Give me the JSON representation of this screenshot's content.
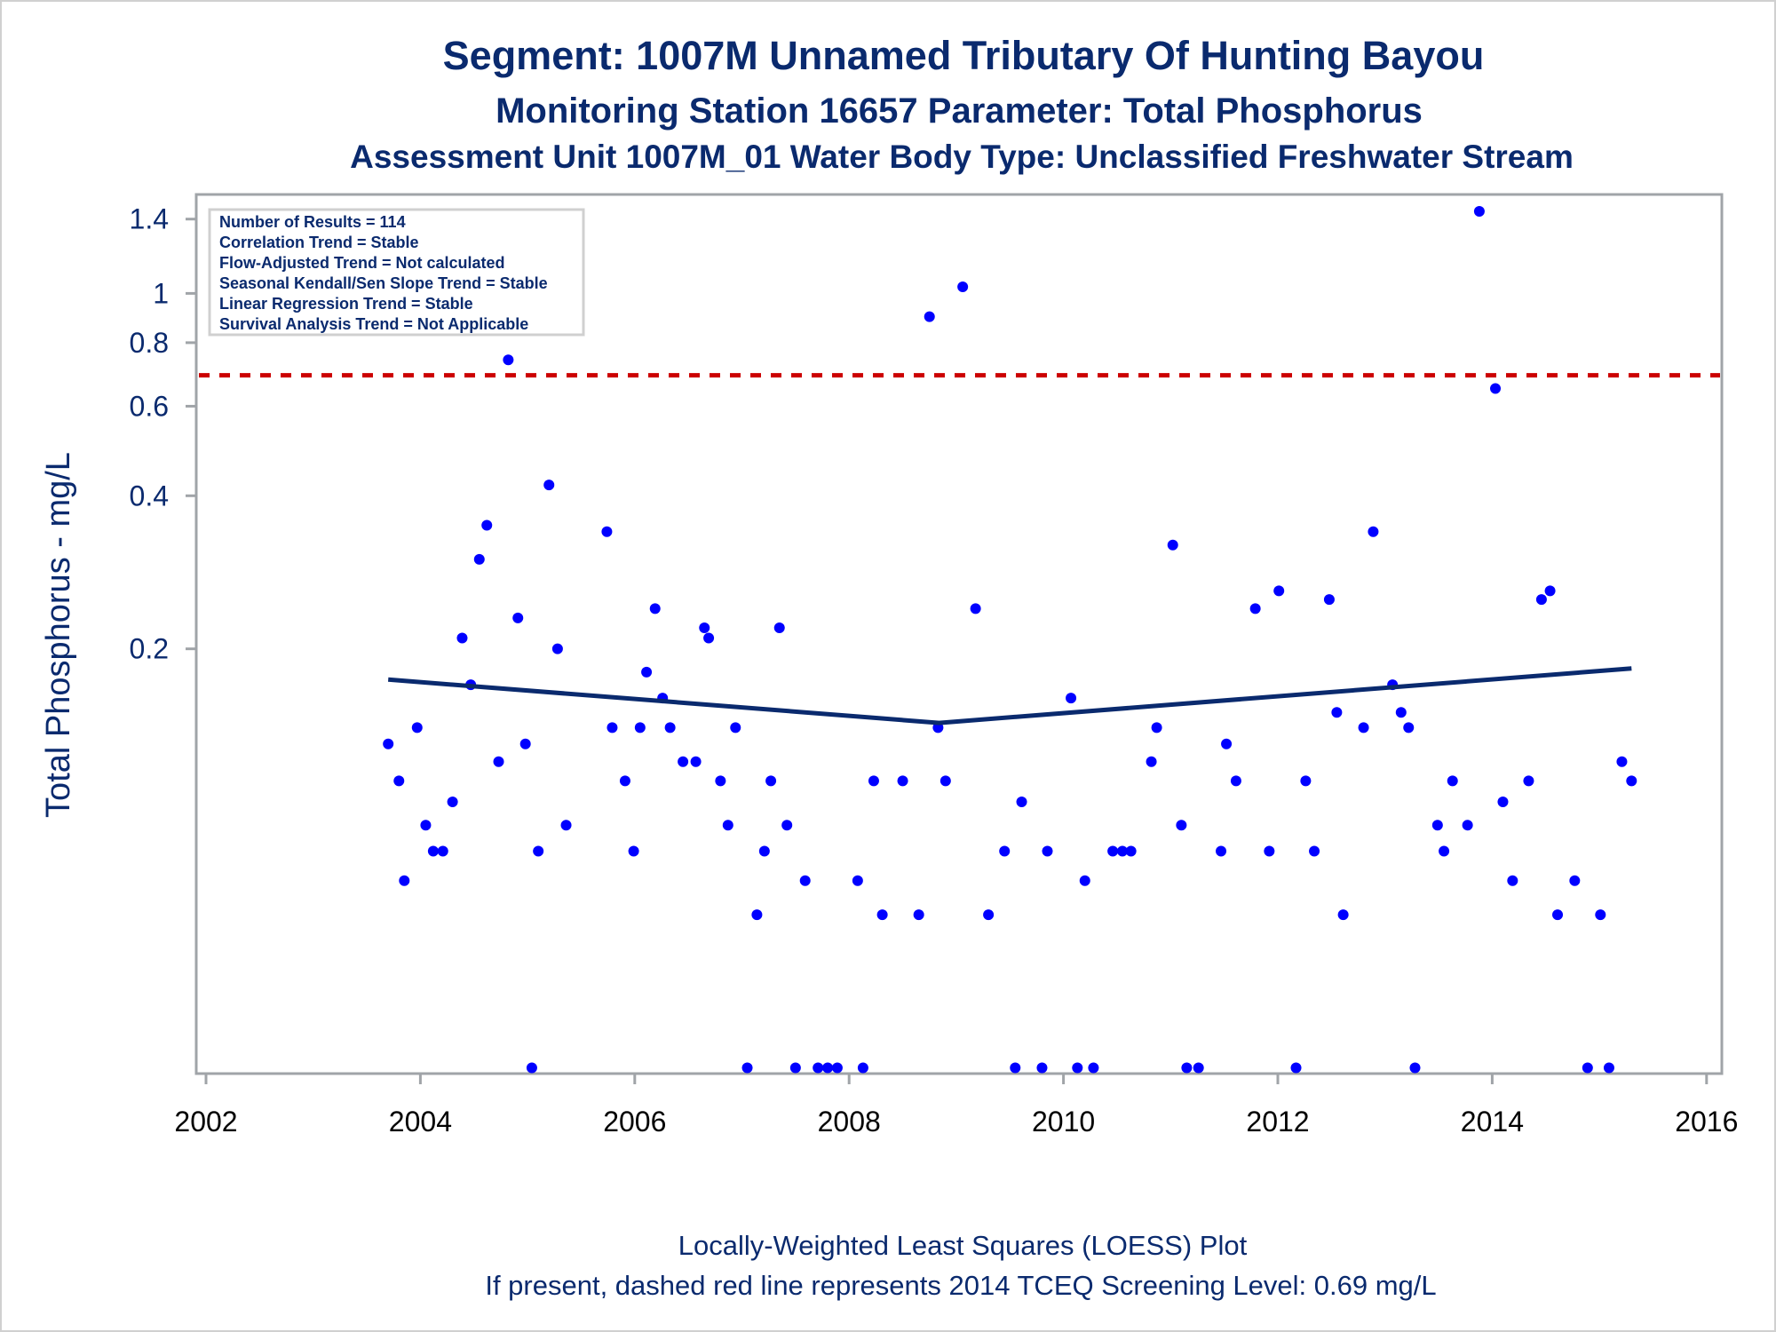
{
  "chart_data": {
    "type": "scatter",
    "title": "Segment: 1007M  Unnamed Tributary Of Hunting Bayou",
    "subtitle": "Monitoring Station 16657 Parameter: Total Phosphorus",
    "subtitle2": "Assessment Unit 1007M_01   Water Body Type: Unclassified Freshwater Stream",
    "xlabel": "",
    "ylabel": "Total Phosphorus - mg/L",
    "yscale": "log",
    "xlim": [
      2002,
      2016
    ],
    "ylim": [
      0.029,
      1.5
    ],
    "x_ticks": [
      "2002",
      "2004",
      "2006",
      "2008",
      "2010",
      "2012",
      "2014",
      "2016"
    ],
    "x_tick_values": [
      2002,
      2004,
      2006,
      2008,
      2010,
      2012,
      2014,
      2016
    ],
    "y_ticks": [
      "1.4",
      "1",
      "0.8",
      "0.6",
      "0.4",
      "0.2"
    ],
    "y_tick_values": [
      1.4,
      1,
      0.8,
      0.6,
      0.4,
      0.2
    ],
    "grid": false,
    "legend_box": {
      "placement": "top-left",
      "lines": [
        "Number of Results = 114",
        "Correlation Trend = Stable",
        "Flow-Adjusted Trend = Not calculated",
        "Seasonal Kendall/Sen Slope Trend = Stable",
        "Linear Regression Trend = Stable",
        "Survival Analysis Trend = Not Applicable"
      ]
    },
    "screening_level": {
      "value": 0.69,
      "color": "#cc0000",
      "style": "dashed"
    },
    "loess": {
      "color": "#0a2a6e",
      "x": [
        2003.7,
        2008.84,
        2015.3
      ],
      "y": [
        0.174,
        0.143,
        0.183
      ]
    },
    "point_color": "#0000ff",
    "points": [
      [
        2003.7,
        0.13
      ],
      [
        2003.8,
        0.11
      ],
      [
        2003.85,
        0.07
      ],
      [
        2003.97,
        0.14
      ],
      [
        2004.05,
        0.09
      ],
      [
        2004.12,
        0.08
      ],
      [
        2004.21,
        0.08
      ],
      [
        2004.3,
        0.1
      ],
      [
        2004.39,
        0.21
      ],
      [
        2004.47,
        0.17
      ],
      [
        2004.55,
        0.3
      ],
      [
        2004.62,
        0.35
      ],
      [
        2004.73,
        0.12
      ],
      [
        2004.82,
        0.74
      ],
      [
        2004.91,
        0.23
      ],
      [
        2004.98,
        0.13
      ],
      [
        2005.04,
        0.03
      ],
      [
        2005.1,
        0.08
      ],
      [
        2005.2,
        0.42
      ],
      [
        2005.28,
        0.2
      ],
      [
        2005.36,
        0.09
      ],
      [
        2005.74,
        0.34
      ],
      [
        2005.79,
        0.14
      ],
      [
        2005.91,
        0.11
      ],
      [
        2005.99,
        0.08
      ],
      [
        2006.05,
        0.14
      ],
      [
        2006.11,
        0.18
      ],
      [
        2006.19,
        0.24
      ],
      [
        2006.26,
        0.16
      ],
      [
        2006.33,
        0.14
      ],
      [
        2006.45,
        0.12
      ],
      [
        2006.57,
        0.12
      ],
      [
        2006.65,
        0.22
      ],
      [
        2006.69,
        0.21
      ],
      [
        2006.8,
        0.11
      ],
      [
        2006.87,
        0.09
      ],
      [
        2006.94,
        0.14
      ],
      [
        2007.05,
        0.03
      ],
      [
        2007.14,
        0.06
      ],
      [
        2007.21,
        0.08
      ],
      [
        2007.27,
        0.11
      ],
      [
        2007.35,
        0.22
      ],
      [
        2007.42,
        0.09
      ],
      [
        2007.5,
        0.03
      ],
      [
        2007.59,
        0.07
      ],
      [
        2007.71,
        0.03
      ],
      [
        2007.8,
        0.03
      ],
      [
        2007.89,
        0.03
      ],
      [
        2008.08,
        0.07
      ],
      [
        2008.13,
        0.03
      ],
      [
        2008.23,
        0.11
      ],
      [
        2008.31,
        0.06
      ],
      [
        2008.5,
        0.11
      ],
      [
        2008.65,
        0.06
      ],
      [
        2008.75,
        0.9
      ],
      [
        2008.83,
        0.14
      ],
      [
        2008.9,
        0.11
      ],
      [
        2009.06,
        1.03
      ],
      [
        2009.18,
        0.24
      ],
      [
        2009.3,
        0.06
      ],
      [
        2009.45,
        0.08
      ],
      [
        2009.55,
        0.03
      ],
      [
        2009.61,
        0.1
      ],
      [
        2009.8,
        0.03
      ],
      [
        2009.85,
        0.08
      ],
      [
        2010.07,
        0.16
      ],
      [
        2010.13,
        0.03
      ],
      [
        2010.2,
        0.07
      ],
      [
        2010.28,
        0.03
      ],
      [
        2010.46,
        0.08
      ],
      [
        2010.55,
        0.08
      ],
      [
        2010.63,
        0.08
      ],
      [
        2010.82,
        0.12
      ],
      [
        2010.87,
        0.14
      ],
      [
        2011.02,
        0.32
      ],
      [
        2011.1,
        0.09
      ],
      [
        2011.15,
        0.03
      ],
      [
        2011.26,
        0.03
      ],
      [
        2011.47,
        0.08
      ],
      [
        2011.52,
        0.13
      ],
      [
        2011.61,
        0.11
      ],
      [
        2011.79,
        0.24
      ],
      [
        2011.92,
        0.08
      ],
      [
        2012.01,
        0.26
      ],
      [
        2012.17,
        0.03
      ],
      [
        2012.26,
        0.11
      ],
      [
        2012.34,
        0.08
      ],
      [
        2012.48,
        0.25
      ],
      [
        2012.55,
        0.15
      ],
      [
        2012.61,
        0.06
      ],
      [
        2012.8,
        0.14
      ],
      [
        2012.89,
        0.34
      ],
      [
        2013.07,
        0.17
      ],
      [
        2013.15,
        0.15
      ],
      [
        2013.22,
        0.14
      ],
      [
        2013.28,
        0.03
      ],
      [
        2013.49,
        0.09
      ],
      [
        2013.55,
        0.08
      ],
      [
        2013.63,
        0.11
      ],
      [
        2013.77,
        0.09
      ],
      [
        2013.88,
        1.45
      ],
      [
        2014.03,
        0.65
      ],
      [
        2014.1,
        0.1
      ],
      [
        2014.19,
        0.07
      ],
      [
        2014.34,
        0.11
      ],
      [
        2014.46,
        0.25
      ],
      [
        2014.54,
        0.26
      ],
      [
        2014.61,
        0.06
      ],
      [
        2014.77,
        0.07
      ],
      [
        2014.89,
        0.03
      ],
      [
        2015.01,
        0.06
      ],
      [
        2015.09,
        0.03
      ],
      [
        2015.21,
        0.12
      ],
      [
        2015.3,
        0.11
      ]
    ],
    "footnotes": [
      "Locally-Weighted Least Squares (LOESS) Plot",
      "If present, dashed red line represents 2014 TCEQ Screening Level: 0.69 mg/L"
    ],
    "text_color": "#0a2a6e"
  }
}
